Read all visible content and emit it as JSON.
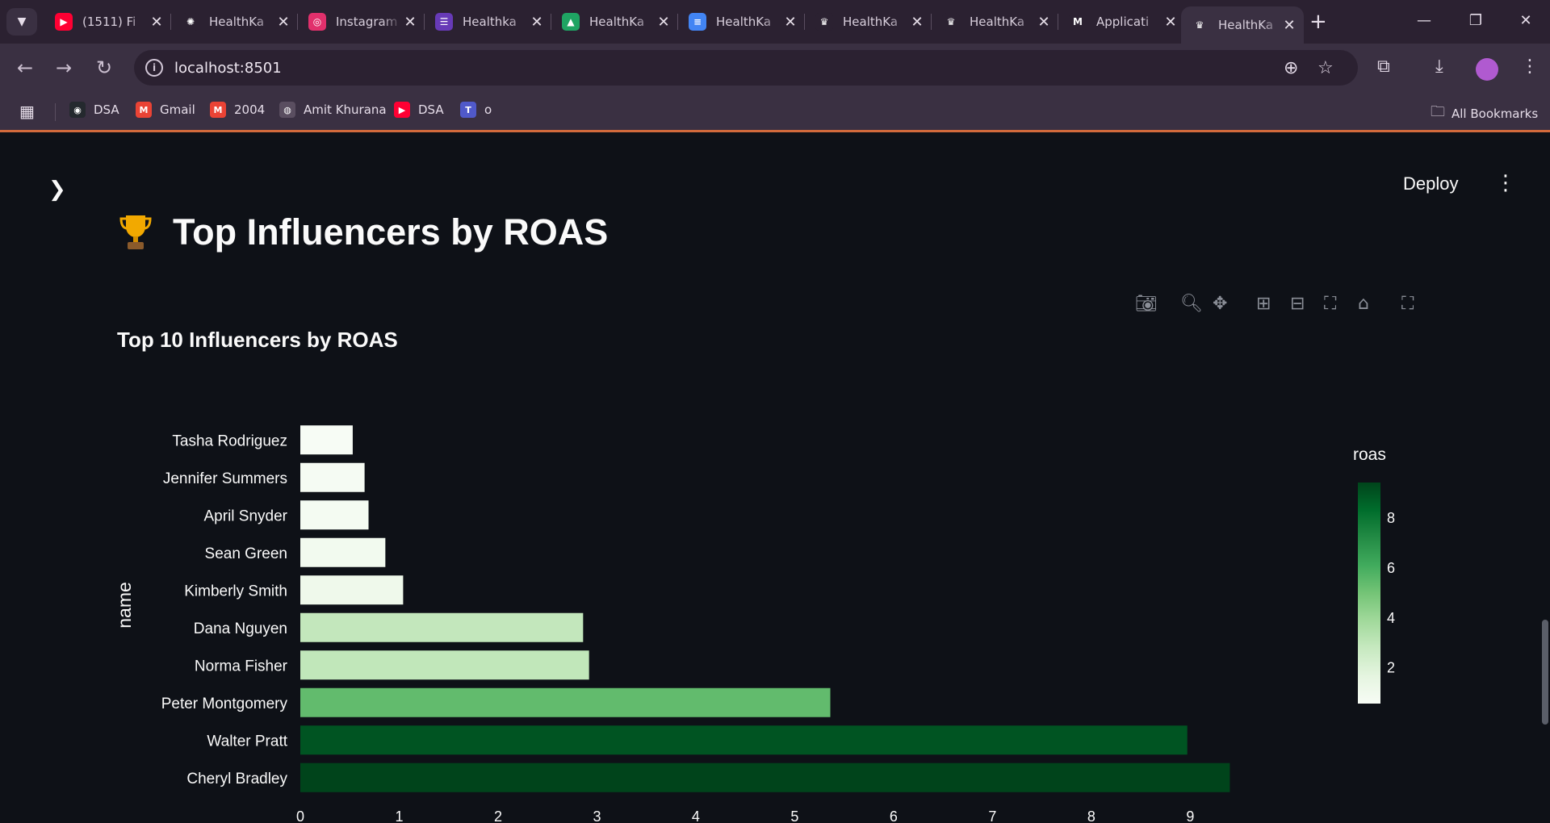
{
  "browser": {
    "tabs": [
      {
        "label": "(1511) Fi",
        "icon": "youtube-icon",
        "color": "#ff0033",
        "glyph": "▶"
      },
      {
        "label": "HealthKa",
        "icon": "chatgpt-icon",
        "color": "#2b2131",
        "glyph": "✺"
      },
      {
        "label": "Instagram",
        "icon": "instagram-icon",
        "color": "#e1306c",
        "glyph": "◎"
      },
      {
        "label": "Healthka",
        "icon": "forms-icon",
        "color": "#673ab7",
        "glyph": "☰"
      },
      {
        "label": "HealthKa",
        "icon": "drive-icon",
        "color": "#1fa463",
        "glyph": "▲"
      },
      {
        "label": "HealthKa",
        "icon": "docs-icon",
        "color": "#4285f4",
        "glyph": "≡"
      },
      {
        "label": "HealthKa",
        "icon": "streamlit-crown-icon",
        "color": "#2b2131",
        "glyph": "♛"
      },
      {
        "label": "HealthKa",
        "icon": "streamlit-crown-icon",
        "color": "#2b2131",
        "glyph": "♛"
      },
      {
        "label": "Applicati",
        "icon": "gmail-icon",
        "color": "#2b2131",
        "glyph": "M"
      },
      {
        "label": "HealthKa",
        "icon": "streamlit-crown-icon",
        "color": "#3a3042",
        "glyph": "♛"
      }
    ],
    "close_glyph": "✕",
    "new_tab_glyph": "+",
    "url": "localhost:8501",
    "info_glyph": "i",
    "bookmarks": [
      {
        "label": "DSA",
        "icon": "github-icon",
        "color": "#24292e",
        "glyph": "◉"
      },
      {
        "label": "Gmail",
        "icon": "gmail-icon",
        "color": "#ea4335",
        "glyph": "M"
      },
      {
        "label": "2004",
        "icon": "gmail-icon",
        "color": "#ea4335",
        "glyph": "M"
      },
      {
        "label": "Amit Khurana",
        "icon": "globe-icon",
        "color": "#5a4e60",
        "glyph": "◍"
      },
      {
        "label": "DSA",
        "icon": "youtube-icon",
        "color": "#ff0033",
        "glyph": "▶"
      },
      {
        "label": "o",
        "icon": "teams-icon",
        "color": "#5059c9",
        "glyph": "T"
      }
    ],
    "all_bookmarks": "All Bookmarks"
  },
  "app": {
    "deploy_label": "Deploy",
    "page_title": "Top Influencers by ROAS",
    "chart_title": "Top 10 Influencers by ROAS"
  },
  "chart_data": {
    "type": "bar",
    "orientation": "horizontal",
    "title": "Top 10 Influencers by ROAS",
    "xlabel": "",
    "ylabel": "name",
    "categories": [
      "Tasha Rodriguez",
      "Jennifer Summers",
      "April Snyder",
      "Sean Green",
      "Kimberly Smith",
      "Dana Nguyen",
      "Norma Fisher",
      "Peter Montgomery",
      "Walter Pratt",
      "Cheryl Bradley"
    ],
    "values": [
      0.53,
      0.65,
      0.69,
      0.86,
      1.04,
      2.86,
      2.92,
      5.36,
      8.97,
      9.4
    ],
    "xlim": [
      0,
      9.895
    ],
    "xticks": [
      0,
      1,
      2,
      3,
      4,
      5,
      6,
      7,
      8,
      9
    ],
    "colorbar": {
      "title": "roas",
      "range": [
        0.53,
        9.4
      ],
      "ticks": [
        2,
        4,
        6,
        8
      ],
      "colorscale": [
        "#f7fcf5",
        "#e5f5e0",
        "#c7e9c0",
        "#a1d99b",
        "#74c476",
        "#41ab5d",
        "#238b45",
        "#006d2c",
        "#00441b"
      ]
    },
    "grid": false,
    "legend": "colorbar-right"
  }
}
